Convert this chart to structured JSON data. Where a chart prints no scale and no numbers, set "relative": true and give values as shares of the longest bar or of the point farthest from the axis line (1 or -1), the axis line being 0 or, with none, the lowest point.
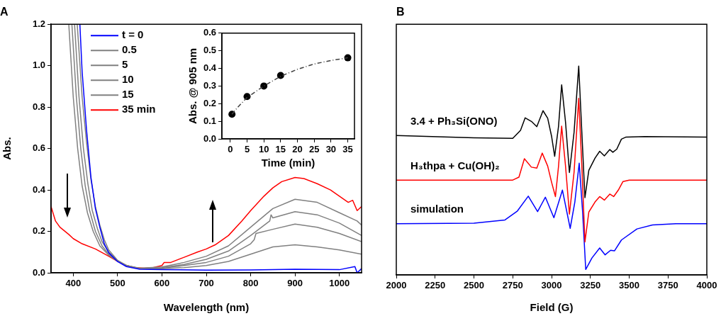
{
  "chart_data": [
    {
      "type": "line",
      "title": "A",
      "xlabel": "Wavelength (nm)",
      "ylabel": "Abs.",
      "legend": "top left",
      "xlim": [
        350,
        1050
      ],
      "ylim": [
        0,
        1.2
      ],
      "xticks": [
        400,
        500,
        600,
        700,
        800,
        900,
        1000
      ],
      "yticks": [
        {
          "value": 0,
          "label": "0.0"
        },
        {
          "value": 0.2,
          "label": "0.2"
        },
        {
          "value": 0.4,
          "label": "0.4"
        },
        {
          "value": 0.6,
          "label": "0.6"
        },
        {
          "value": 0.8,
          "label": "0.8"
        },
        {
          "value": 1,
          "label": "1.0"
        },
        {
          "value": 1.2,
          "label": "1.2"
        }
      ],
      "series": [
        {
          "name": "t = 0",
          "color": "#0000ff",
          "x": [
            415,
            420,
            430,
            440,
            450,
            460,
            470,
            480,
            500,
            520,
            550,
            600,
            700,
            800,
            900,
            1000,
            1035,
            1040,
            1050
          ],
          "values": [
            1.2,
            0.974,
            0.69,
            0.46,
            0.31,
            0.22,
            0.14,
            0.097,
            0.054,
            0.03,
            0.017,
            0.015,
            0.013,
            0.014,
            0.017,
            0.015,
            0.03,
            0.0,
            0.02
          ]
        },
        {
          "name": "0.5",
          "color": "#808080",
          "x": [
            409,
            420,
            430,
            440,
            450,
            460,
            470,
            480,
            500,
            520,
            550,
            600,
            650,
            700,
            750,
            800,
            850,
            900,
            950,
            1000,
            1050
          ],
          "values": [
            1.2,
            0.85,
            0.63,
            0.45,
            0.32,
            0.23,
            0.16,
            0.11,
            0.06,
            0.035,
            0.02,
            0.02,
            0.025,
            0.035,
            0.055,
            0.09,
            0.125,
            0.135,
            0.125,
            0.11,
            0.09
          ]
        },
        {
          "name": "5",
          "color": "#808080",
          "x": [
            403,
            413,
            423,
            433,
            443,
            455,
            465,
            480,
            500,
            520,
            550,
            600,
            650,
            700,
            750,
            800,
            808,
            812,
            850,
            900,
            950,
            1000,
            1050
          ],
          "values": [
            1.2,
            0.85,
            0.6,
            0.43,
            0.3,
            0.21,
            0.15,
            0.1,
            0.058,
            0.035,
            0.02,
            0.022,
            0.035,
            0.05,
            0.08,
            0.14,
            0.16,
            0.19,
            0.21,
            0.235,
            0.22,
            0.19,
            0.15
          ]
        },
        {
          "name": "10",
          "color": "#808080",
          "x": [
            397,
            407,
            417,
            427,
            437,
            450,
            465,
            480,
            500,
            520,
            550,
            600,
            650,
            700,
            750,
            800,
            843,
            846,
            850,
            900,
            950,
            1000,
            1050
          ],
          "values": [
            1.2,
            0.85,
            0.6,
            0.42,
            0.3,
            0.2,
            0.13,
            0.09,
            0.056,
            0.035,
            0.02,
            0.025,
            0.04,
            0.065,
            0.105,
            0.18,
            0.25,
            0.28,
            0.265,
            0.295,
            0.28,
            0.24,
            0.18
          ]
        },
        {
          "name": "15",
          "color": "#808080",
          "x": [
            390,
            400,
            410,
            420,
            432,
            445,
            460,
            480,
            500,
            520,
            550,
            600,
            650,
            700,
            750,
            800,
            850,
            900,
            950,
            1000,
            1040,
            1050
          ],
          "values": [
            1.2,
            0.85,
            0.6,
            0.42,
            0.29,
            0.2,
            0.13,
            0.085,
            0.055,
            0.035,
            0.022,
            0.028,
            0.05,
            0.08,
            0.13,
            0.22,
            0.31,
            0.355,
            0.34,
            0.29,
            0.25,
            0.23
          ]
        },
        {
          "name": "35 min",
          "color": "#ff0000",
          "x": [
            350,
            360,
            370,
            390,
            400,
            420,
            450,
            480,
            500,
            520,
            540,
            560,
            580,
            600,
            605,
            620,
            650,
            680,
            700,
            720,
            750,
            780,
            800,
            830,
            850,
            870,
            900,
            920,
            950,
            980,
            1000,
            1020,
            1030,
            1040,
            1050
          ],
          "values": [
            0.32,
            0.25,
            0.22,
            0.185,
            0.165,
            0.14,
            0.115,
            0.08,
            0.055,
            0.035,
            0.025,
            0.022,
            0.025,
            0.035,
            0.05,
            0.05,
            0.075,
            0.1,
            0.115,
            0.135,
            0.18,
            0.25,
            0.3,
            0.37,
            0.41,
            0.44,
            0.46,
            0.455,
            0.43,
            0.4,
            0.37,
            0.34,
            0.35,
            0.3,
            0.32
          ]
        }
      ]
    },
    {
      "type": "scatter",
      "xlabel": "Time (min)",
      "ylabel": "Abs. @ 905 nm",
      "xlim": [
        -2.5,
        37
      ],
      "ylim": [
        0,
        0.6
      ],
      "xticks": [
        0,
        5,
        10,
        15,
        20,
        25,
        30,
        35
      ],
      "yticks": [
        {
          "value": 0,
          "label": "0.0"
        },
        {
          "value": 0.1,
          "label": "0.1"
        },
        {
          "value": 0.2,
          "label": "0.2"
        },
        {
          "value": 0.3,
          "label": "0.3"
        },
        {
          "value": 0.4,
          "label": "0.4"
        },
        {
          "value": 0.5,
          "label": "0.5"
        },
        {
          "value": 0.6,
          "label": "0.6"
        }
      ],
      "series": [
        {
          "type": "line",
          "color": "#404040",
          "line_style": "dashed",
          "x": [
            0.5,
            2,
            5,
            10,
            15,
            20,
            25,
            30,
            35
          ],
          "values": [
            0.14,
            0.175,
            0.235,
            0.3,
            0.355,
            0.395,
            0.425,
            0.445,
            0.46
          ]
        },
        {
          "marker": "circle",
          "color": "#000000",
          "x": [
            0.5,
            5,
            10,
            15,
            35
          ],
          "values": [
            0.14,
            0.24,
            0.3,
            0.36,
            0.46
          ]
        }
      ]
    },
    {
      "type": "line",
      "title": "B",
      "xlabel": "Field (G)",
      "relative": true,
      "tick_labels": "x",
      "xlim": [
        2000,
        4000
      ],
      "xticks": [
        2000,
        2250,
        2500,
        2750,
        3000,
        3250,
        3500,
        3750,
        4000
      ],
      "series": [
        {
          "name": "3.4 + Ph₃Si(ONO)",
          "color": "#000000",
          "x": [
            2000,
            2500,
            2750,
            2800,
            2830,
            2870,
            2905,
            2945,
            2975,
            3000,
            3020,
            3045,
            3065,
            3090,
            3115,
            3145,
            3175,
            3195,
            3215,
            3240,
            3280,
            3310,
            3340,
            3375,
            3395,
            3420,
            3450,
            3480,
            3600,
            4000
          ],
          "values": [
            0.667,
            0.656,
            0.654,
            0.692,
            0.752,
            0.735,
            0.71,
            0.786,
            0.75,
            0.664,
            0.568,
            0.712,
            0.91,
            0.731,
            0.49,
            0.683,
            1.0,
            0.683,
            0.37,
            0.501,
            0.559,
            0.592,
            0.57,
            0.6,
            0.587,
            0.602,
            0.65,
            0.66,
            0.662,
            0.66
          ]
        },
        {
          "name": "H₃thpa + Cu(OH)₂",
          "color": "#ff0000",
          "x": [
            2000,
            2750,
            2790,
            2825,
            2870,
            2905,
            2940,
            2975,
            3000,
            3025,
            3045,
            3065,
            3090,
            3115,
            3145,
            3175,
            3195,
            3215,
            3240,
            3280,
            3310,
            3340,
            3375,
            3400,
            3430,
            3460,
            3500,
            4000
          ],
          "values": [
            0.454,
            0.454,
            0.468,
            0.556,
            0.516,
            0.511,
            0.583,
            0.521,
            0.444,
            0.375,
            0.521,
            0.712,
            0.521,
            0.291,
            0.492,
            0.845,
            0.521,
            0.158,
            0.301,
            0.349,
            0.375,
            0.358,
            0.387,
            0.375,
            0.406,
            0.447,
            0.454,
            0.454
          ]
        },
        {
          "name": "simulation",
          "color": "#0000ff",
          "x": [
            2000,
            2500,
            2700,
            2780,
            2850,
            2910,
            2960,
            3015,
            3070,
            3120,
            3150,
            3178,
            3200,
            3220,
            3260,
            3310,
            3345,
            3380,
            3405,
            3450,
            3550,
            3650,
            3800,
            4000
          ],
          "values": [
            0.245,
            0.248,
            0.263,
            0.306,
            0.377,
            0.303,
            0.372,
            0.274,
            0.406,
            0.223,
            0.349,
            0.535,
            0.301,
            0.026,
            0.081,
            0.129,
            0.096,
            0.118,
            0.115,
            0.167,
            0.22,
            0.239,
            0.245,
            0.245
          ]
        }
      ]
    }
  ]
}
